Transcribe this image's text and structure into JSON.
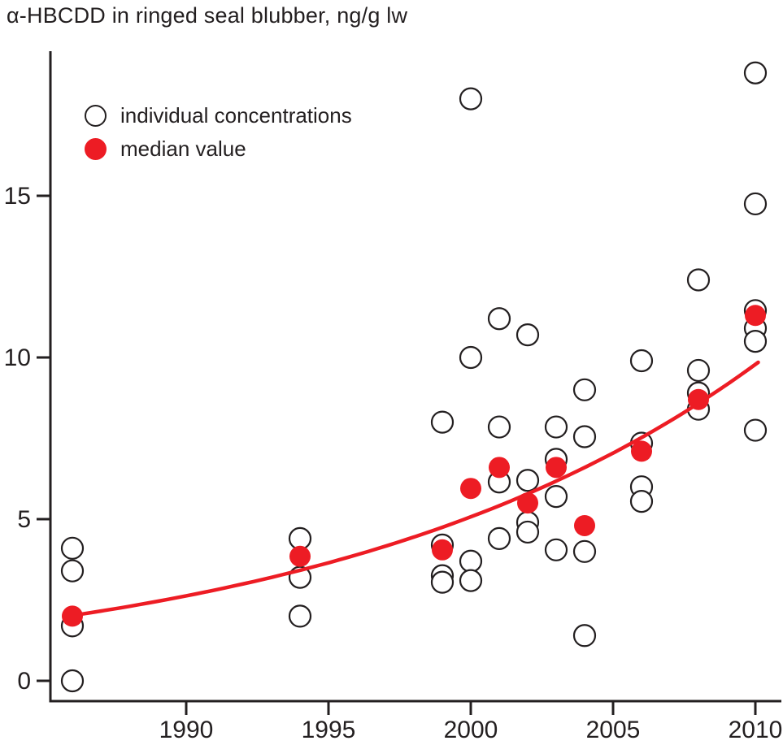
{
  "title": "α-HBCDD in ringed seal blubber, ng/g lw",
  "legend": {
    "individual_label": "individual concentrations",
    "median_label": "median value"
  },
  "colors": {
    "accent_red": "#ed1c24",
    "axis": "#231f20",
    "background": "#ffffff"
  },
  "chart_data": {
    "type": "scatter",
    "title": "α-HBCDD in ringed seal blubber, ng/g lw",
    "xlabel": "",
    "ylabel": "ng/g lw",
    "xlim": [
      1985.2,
      2011
    ],
    "ylim": [
      -0.6,
      19.5
    ],
    "x_ticks": [
      1990,
      1995,
      2000,
      2005,
      2010
    ],
    "y_ticks": [
      0,
      5,
      10,
      15
    ],
    "grid": false,
    "legend_position": "upper-left",
    "series": [
      {
        "name": "individual concentrations",
        "marker": "open-circle",
        "color": "#231f20",
        "points": [
          [
            1986,
            4.1
          ],
          [
            1986,
            3.4
          ],
          [
            1986,
            1.7
          ],
          [
            1986,
            0.0
          ],
          [
            1994,
            4.4
          ],
          [
            1994,
            3.2
          ],
          [
            1994,
            2.0
          ],
          [
            1999,
            8.0
          ],
          [
            1999,
            4.2
          ],
          [
            1999,
            3.25
          ],
          [
            1999,
            3.05
          ],
          [
            2000,
            18.0
          ],
          [
            2000,
            10.0
          ],
          [
            2000,
            3.7
          ],
          [
            2000,
            3.1
          ],
          [
            2001,
            11.2
          ],
          [
            2001,
            7.85
          ],
          [
            2001,
            6.15
          ],
          [
            2001,
            4.4
          ],
          [
            2002,
            10.7
          ],
          [
            2002,
            6.2
          ],
          [
            2002,
            4.9
          ],
          [
            2002,
            4.6
          ],
          [
            2003,
            7.85
          ],
          [
            2003,
            6.85
          ],
          [
            2003,
            5.7
          ],
          [
            2003,
            4.05
          ],
          [
            2004,
            9.0
          ],
          [
            2004,
            7.55
          ],
          [
            2004,
            4.0
          ],
          [
            2004,
            1.4
          ],
          [
            2006,
            9.9
          ],
          [
            2006,
            7.35
          ],
          [
            2006,
            6.0
          ],
          [
            2006,
            5.55
          ],
          [
            2008,
            12.4
          ],
          [
            2008,
            9.6
          ],
          [
            2008,
            8.9
          ],
          [
            2008,
            8.4
          ],
          [
            2010,
            18.8
          ],
          [
            2010,
            14.75
          ],
          [
            2010,
            11.45
          ],
          [
            2010,
            10.9
          ],
          [
            2010,
            10.5
          ],
          [
            2010,
            7.75
          ]
        ]
      },
      {
        "name": "median value",
        "marker": "filled-circle",
        "color": "#ed1c24",
        "points": [
          [
            1986,
            2.0
          ],
          [
            1994,
            3.85
          ],
          [
            1999,
            4.05
          ],
          [
            2000,
            5.95
          ],
          [
            2001,
            6.6
          ],
          [
            2002,
            5.5
          ],
          [
            2003,
            6.6
          ],
          [
            2004,
            4.8
          ],
          [
            2006,
            7.1
          ],
          [
            2008,
            8.7
          ],
          [
            2010,
            11.3
          ]
        ]
      }
    ],
    "trend": {
      "type": "exponential",
      "color": "#ed1c24",
      "x_start": 1986.0,
      "x_end": 2010.1,
      "y_start": 2.02,
      "y_end": 9.85
    }
  }
}
